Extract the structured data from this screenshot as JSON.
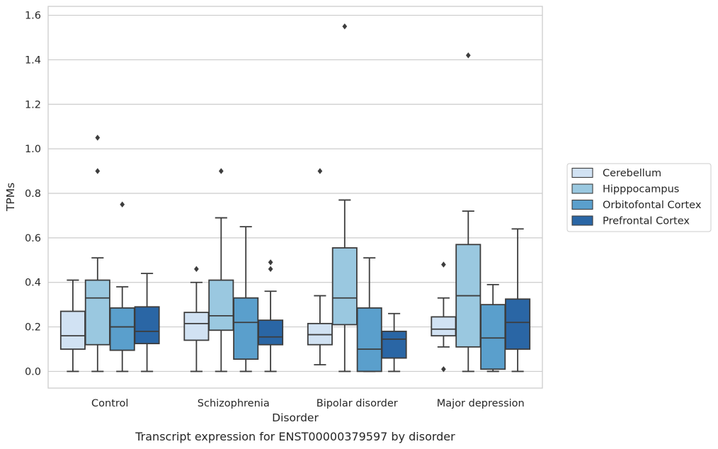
{
  "chart_data": {
    "type": "box",
    "title": "",
    "caption": "Transcript expression for ENST00000379597 by disorder",
    "xlabel": "Disorder",
    "ylabel": "TPMs",
    "ylim": [
      -0.075,
      1.64
    ],
    "yticks": [
      "0.0",
      "0.2",
      "0.4",
      "0.6",
      "0.8",
      "1.0",
      "1.2",
      "1.4",
      "1.6"
    ],
    "grid": true,
    "legend_position": "right",
    "categories": [
      "Control",
      "Schizophrenia",
      "Bipolar disorder",
      "Major depression"
    ],
    "series": [
      {
        "name": "Cerebellum",
        "color": "#d1e2f3",
        "boxes": [
          {
            "whislo": 0.0,
            "q1": 0.1,
            "med": 0.16,
            "q3": 0.27,
            "whishi": 0.41,
            "fliers": []
          },
          {
            "whislo": 0.0,
            "q1": 0.14,
            "med": 0.215,
            "q3": 0.265,
            "whishi": 0.4,
            "fliers": [
              0.46
            ]
          },
          {
            "whislo": 0.03,
            "q1": 0.12,
            "med": 0.165,
            "q3": 0.215,
            "whishi": 0.34,
            "fliers": [
              0.9
            ]
          },
          {
            "whislo": 0.11,
            "q1": 0.16,
            "med": 0.19,
            "q3": 0.245,
            "whishi": 0.33,
            "fliers": [
              0.48,
              0.01
            ]
          }
        ]
      },
      {
        "name": "Hipppocampus",
        "color": "#9ac8e0",
        "boxes": [
          {
            "whislo": 0.0,
            "q1": 0.12,
            "med": 0.33,
            "q3": 0.41,
            "whishi": 0.51,
            "fliers": [
              0.9,
              1.05
            ]
          },
          {
            "whislo": 0.0,
            "q1": 0.185,
            "med": 0.25,
            "q3": 0.41,
            "whishi": 0.69,
            "fliers": [
              0.9
            ]
          },
          {
            "whislo": 0.0,
            "q1": 0.21,
            "med": 0.33,
            "q3": 0.555,
            "whishi": 0.77,
            "fliers": [
              1.55
            ]
          },
          {
            "whislo": 0.0,
            "q1": 0.11,
            "med": 0.34,
            "q3": 0.57,
            "whishi": 0.72,
            "fliers": [
              1.42
            ]
          }
        ]
      },
      {
        "name": "Orbitofontal Cortex",
        "color": "#5a9fcc",
        "boxes": [
          {
            "whislo": 0.0,
            "q1": 0.095,
            "med": 0.2,
            "q3": 0.285,
            "whishi": 0.38,
            "fliers": [
              0.75
            ]
          },
          {
            "whislo": 0.0,
            "q1": 0.055,
            "med": 0.22,
            "q3": 0.33,
            "whishi": 0.65,
            "fliers": []
          },
          {
            "whislo": 0.0,
            "q1": 0.0,
            "med": 0.1,
            "q3": 0.285,
            "whishi": 0.51,
            "fliers": []
          },
          {
            "whislo": 0.0,
            "q1": 0.01,
            "med": 0.15,
            "q3": 0.3,
            "whishi": 0.39,
            "fliers": []
          }
        ]
      },
      {
        "name": "Prefrontal Cortex",
        "color": "#2a66a5",
        "boxes": [
          {
            "whislo": 0.0,
            "q1": 0.125,
            "med": 0.18,
            "q3": 0.29,
            "whishi": 0.44,
            "fliers": []
          },
          {
            "whislo": 0.0,
            "q1": 0.12,
            "med": 0.155,
            "q3": 0.23,
            "whishi": 0.36,
            "fliers": [
              0.46,
              0.49
            ]
          },
          {
            "whislo": 0.0,
            "q1": 0.06,
            "med": 0.145,
            "q3": 0.18,
            "whishi": 0.26,
            "fliers": []
          },
          {
            "whislo": 0.0,
            "q1": 0.1,
            "med": 0.22,
            "q3": 0.325,
            "whishi": 0.64,
            "fliers": []
          }
        ]
      }
    ]
  }
}
